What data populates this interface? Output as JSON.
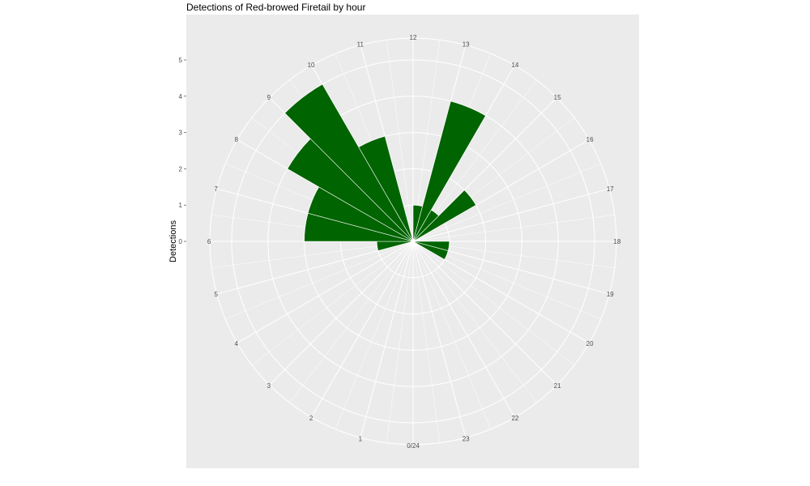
{
  "chart_data": {
    "type": "bar",
    "coord": "polar",
    "title": "Detections of Red-browed Firetail by hour",
    "xlabel": "",
    "ylabel": "Detections",
    "categories": [
      0,
      1,
      2,
      3,
      4,
      5,
      6,
      7,
      8,
      9,
      10,
      11,
      12,
      13,
      14,
      15,
      16,
      17,
      18,
      19,
      20,
      21,
      22,
      23
    ],
    "values": [
      0,
      0,
      0,
      0,
      0,
      1,
      3,
      3,
      4,
      5,
      3,
      0,
      1,
      4,
      1,
      2,
      0,
      0,
      1,
      1,
      0,
      0,
      0,
      0
    ],
    "angle_tick_labels": [
      "0/24",
      "1",
      "2",
      "3",
      "4",
      "5",
      "6",
      "7",
      "8",
      "9",
      "10",
      "11",
      "12",
      "13",
      "14",
      "15",
      "16",
      "17",
      "18",
      "19",
      "20",
      "21",
      "22",
      "23"
    ],
    "radial_tick_labels": [
      "0",
      "1",
      "2",
      "3",
      "4",
      "5"
    ],
    "ylim": [
      0,
      5.6
    ],
    "grid": true,
    "bar_color": "#006400",
    "panel_color": "#EBEBEB"
  }
}
